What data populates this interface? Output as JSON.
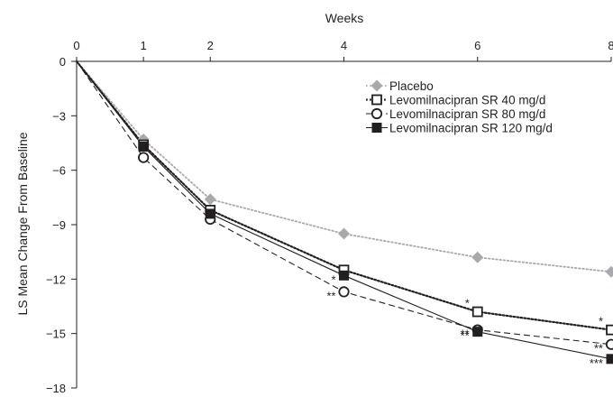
{
  "chart_data": {
    "type": "line",
    "xlabel": "Weeks",
    "ylabel": "LS Mean Change From Baseline",
    "x_ticks": [
      0,
      1,
      2,
      4,
      6,
      8
    ],
    "x_tick_labels": [
      "0",
      "1",
      "2",
      "4",
      "6",
      "8"
    ],
    "y_ticks": [
      0,
      -3,
      -6,
      -9,
      -12,
      -15,
      -18
    ],
    "y_tick_labels": [
      "0",
      "−3",
      "−6",
      "−9",
      "−12",
      "−15",
      "−18"
    ],
    "xlim": [
      0,
      8
    ],
    "ylim": [
      -18,
      0
    ],
    "x_axis_position": "top",
    "grid": false,
    "legend_position": "top-right",
    "series": [
      {
        "name": "Placebo",
        "x": [
          0,
          1,
          2,
          4,
          6,
          8
        ],
        "values": [
          0,
          -4.3,
          -7.6,
          -9.5,
          -10.8,
          -11.6
        ],
        "color": "#a7a9ac",
        "line": "dotted",
        "marker": "diamond-filled",
        "significance": [
          "",
          "",
          "",
          "",
          "",
          ""
        ]
      },
      {
        "name": "Levomilnacipran SR 40 mg/d",
        "x": [
          0,
          1,
          2,
          4,
          6,
          8
        ],
        "values": [
          0,
          -4.6,
          -8.2,
          -11.5,
          -13.8,
          -14.8
        ],
        "color": "#231f20",
        "line": "dotted-heavy",
        "marker": "square-open",
        "significance": [
          "",
          "",
          "",
          "",
          "*",
          "*"
        ]
      },
      {
        "name": "Levomilnacipran SR 80 mg/d",
        "x": [
          0,
          1,
          2,
          4,
          6,
          8
        ],
        "values": [
          0,
          -5.3,
          -8.7,
          -12.7,
          -14.8,
          -15.6
        ],
        "color": "#231f20",
        "line": "dashed",
        "marker": "circle-open",
        "significance": [
          "",
          "",
          "",
          "**",
          "**",
          "**"
        ]
      },
      {
        "name": "Levomilnacipran SR 120 mg/d",
        "x": [
          0,
          1,
          2,
          4,
          6,
          8
        ],
        "values": [
          0,
          -4.7,
          -8.4,
          -11.8,
          -14.9,
          -16.4
        ],
        "color": "#231f20",
        "line": "solid",
        "marker": "square-filled",
        "significance": [
          "",
          "",
          "",
          "*",
          "**",
          "***"
        ]
      }
    ]
  }
}
